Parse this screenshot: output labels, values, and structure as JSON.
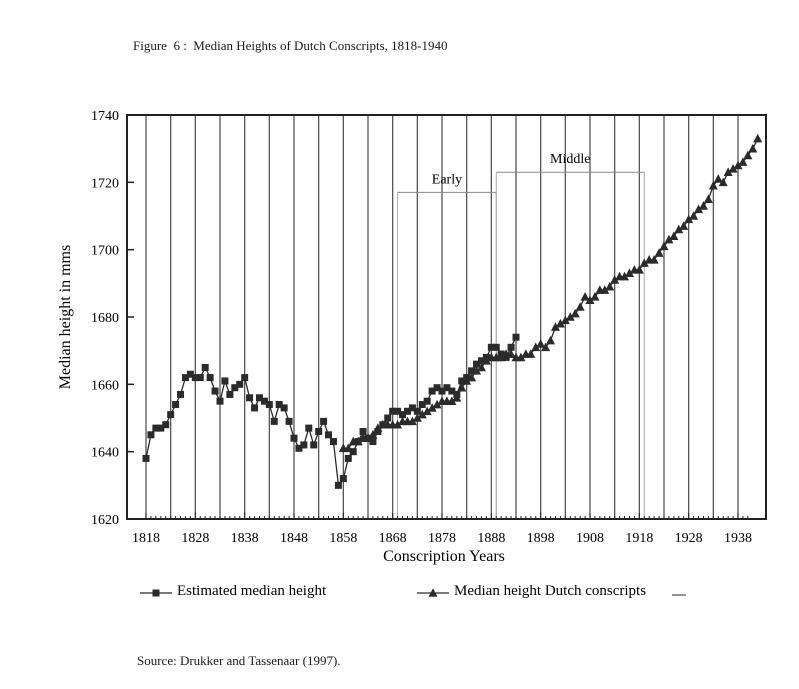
{
  "figure_title": "Figure  6 :  Median Heights of Dutch Conscripts, 1818-1940",
  "source": "Source:  Drukker and Tassenaar (1997).",
  "chart_data": {
    "type": "line",
    "title": "Figure  6 :  Median Heights of Dutch Conscripts, 1818-1940",
    "xlabel": "Conscription Years",
    "ylabel": "Median height in mms",
    "xlim": [
      1818,
      1942
    ],
    "ylim": [
      1620,
      1740
    ],
    "x_ticks": [
      1818,
      1828,
      1838,
      1848,
      1858,
      1868,
      1878,
      1888,
      1898,
      1908,
      1918,
      1928,
      1938
    ],
    "y_ticks": [
      1620,
      1640,
      1660,
      1680,
      1700,
      1720,
      1740
    ],
    "grid": "vertical lines at every 5 years",
    "legend_placement": "bottom",
    "annotations": [
      {
        "text": "Early",
        "x_start": 1869,
        "x_end": 1889,
        "y": 1717
      },
      {
        "text": "Middle",
        "x_start": 1889,
        "x_end": 1919,
        "y": 1723
      }
    ],
    "series": [
      {
        "name": "Estimated median height",
        "marker": "square",
        "points": [
          [
            1818,
            1638
          ],
          [
            1819,
            1645
          ],
          [
            1820,
            1647
          ],
          [
            1821,
            1647
          ],
          [
            1822,
            1648
          ],
          [
            1823,
            1651
          ],
          [
            1824,
            1654
          ],
          [
            1825,
            1657
          ],
          [
            1826,
            1662
          ],
          [
            1827,
            1663
          ],
          [
            1828,
            1662
          ],
          [
            1829,
            1662
          ],
          [
            1830,
            1665
          ],
          [
            1831,
            1662
          ],
          [
            1832,
            1658
          ],
          [
            1833,
            1655
          ],
          [
            1834,
            1661
          ],
          [
            1835,
            1657
          ],
          [
            1836,
            1659
          ],
          [
            1837,
            1660
          ],
          [
            1838,
            1662
          ],
          [
            1839,
            1656
          ],
          [
            1840,
            1653
          ],
          [
            1841,
            1656
          ],
          [
            1842,
            1655
          ],
          [
            1843,
            1654
          ],
          [
            1844,
            1649
          ],
          [
            1845,
            1654
          ],
          [
            1846,
            1653
          ],
          [
            1847,
            1649
          ],
          [
            1848,
            1644
          ],
          [
            1849,
            1641
          ],
          [
            1850,
            1642
          ],
          [
            1851,
            1647
          ],
          [
            1852,
            1642
          ],
          [
            1853,
            1646
          ],
          [
            1854,
            1649
          ],
          [
            1855,
            1645
          ],
          [
            1856,
            1643
          ],
          [
            1857,
            1630
          ],
          [
            1858,
            1632
          ],
          [
            1859,
            1638
          ],
          [
            1860,
            1640
          ],
          [
            1861,
            1643
          ],
          [
            1862,
            1646
          ],
          [
            1863,
            1644
          ],
          [
            1864,
            1643
          ],
          [
            1865,
            1646
          ],
          [
            1866,
            1648
          ],
          [
            1867,
            1650
          ],
          [
            1868,
            1652
          ],
          [
            1869,
            1652
          ],
          [
            1870,
            1651
          ],
          [
            1871,
            1652
          ],
          [
            1872,
            1653
          ],
          [
            1873,
            1652
          ],
          [
            1874,
            1654
          ],
          [
            1875,
            1655
          ],
          [
            1876,
            1658
          ],
          [
            1877,
            1659
          ],
          [
            1878,
            1658
          ],
          [
            1879,
            1659
          ],
          [
            1880,
            1658
          ],
          [
            1881,
            1657
          ],
          [
            1882,
            1661
          ],
          [
            1883,
            1662
          ],
          [
            1884,
            1664
          ],
          [
            1885,
            1666
          ],
          [
            1886,
            1667
          ],
          [
            1887,
            1668
          ],
          [
            1888,
            1671
          ],
          [
            1889,
            1671
          ],
          [
            1890,
            1669
          ],
          [
            1891,
            1668
          ],
          [
            1892,
            1671
          ],
          [
            1893,
            1674
          ]
        ]
      },
      {
        "name": "Median height Dutch conscripts",
        "marker": "triangle",
        "points": [
          [
            1858,
            1641
          ],
          [
            1859,
            1641
          ],
          [
            1860,
            1643
          ],
          [
            1861,
            1643
          ],
          [
            1862,
            1644
          ],
          [
            1863,
            1644
          ],
          [
            1864,
            1645
          ],
          [
            1865,
            1647
          ],
          [
            1866,
            1648
          ],
          [
            1867,
            1648
          ],
          [
            1868,
            1648
          ],
          [
            1869,
            1648
          ],
          [
            1870,
            1649
          ],
          [
            1871,
            1649
          ],
          [
            1872,
            1649
          ],
          [
            1873,
            1650
          ],
          [
            1874,
            1651
          ],
          [
            1875,
            1652
          ],
          [
            1876,
            1653
          ],
          [
            1877,
            1654
          ],
          [
            1878,
            1655
          ],
          [
            1879,
            1655
          ],
          [
            1880,
            1655
          ],
          [
            1881,
            1656
          ],
          [
            1882,
            1659
          ],
          [
            1883,
            1661
          ],
          [
            1884,
            1662
          ],
          [
            1885,
            1664
          ],
          [
            1886,
            1665
          ],
          [
            1887,
            1667
          ],
          [
            1888,
            1668
          ],
          [
            1889,
            1668
          ],
          [
            1890,
            1668
          ],
          [
            1891,
            1669
          ],
          [
            1892,
            1669
          ],
          [
            1893,
            1668
          ],
          [
            1894,
            1668
          ],
          [
            1895,
            1669
          ],
          [
            1896,
            1669
          ],
          [
            1897,
            1671
          ],
          [
            1898,
            1672
          ],
          [
            1899,
            1671
          ],
          [
            1900,
            1673
          ],
          [
            1901,
            1677
          ],
          [
            1902,
            1678
          ],
          [
            1903,
            1679
          ],
          [
            1904,
            1680
          ],
          [
            1905,
            1681
          ],
          [
            1906,
            1683
          ],
          [
            1907,
            1686
          ],
          [
            1908,
            1685
          ],
          [
            1909,
            1686
          ],
          [
            1910,
            1688
          ],
          [
            1911,
            1688
          ],
          [
            1912,
            1689
          ],
          [
            1913,
            1691
          ],
          [
            1914,
            1692
          ],
          [
            1915,
            1692
          ],
          [
            1916,
            1693
          ],
          [
            1917,
            1694
          ],
          [
            1918,
            1694
          ],
          [
            1919,
            1696
          ],
          [
            1920,
            1697
          ],
          [
            1921,
            1697
          ],
          [
            1922,
            1699
          ],
          [
            1923,
            1701
          ],
          [
            1924,
            1703
          ],
          [
            1925,
            1704
          ],
          [
            1926,
            1706
          ],
          [
            1927,
            1707
          ],
          [
            1928,
            1709
          ],
          [
            1929,
            1710
          ],
          [
            1930,
            1712
          ],
          [
            1931,
            1713
          ],
          [
            1932,
            1715
          ],
          [
            1933,
            1719
          ],
          [
            1934,
            1721
          ],
          [
            1935,
            1720
          ],
          [
            1936,
            1723
          ],
          [
            1937,
            1724
          ],
          [
            1938,
            1725
          ],
          [
            1939,
            1726
          ],
          [
            1940,
            1728
          ],
          [
            1941,
            1730
          ],
          [
            1942,
            1733
          ]
        ]
      }
    ]
  }
}
